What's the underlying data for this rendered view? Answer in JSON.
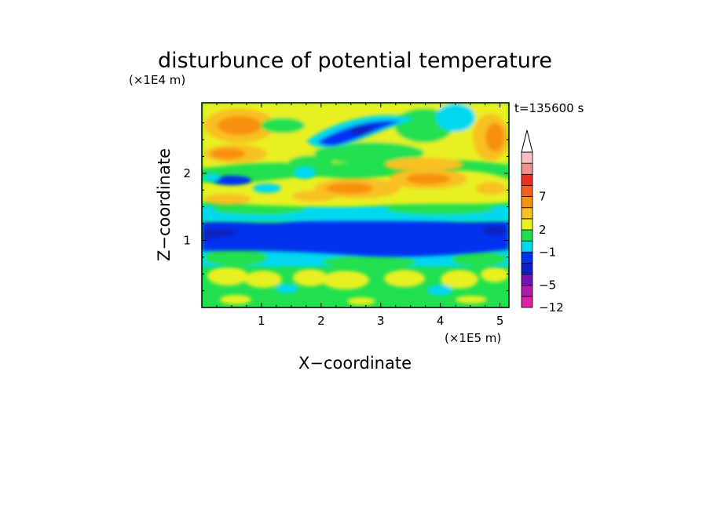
{
  "chart_data": {
    "type": "heatmap",
    "title": "disturbunce of potential temperature",
    "xlabel": "X−coordinate",
    "ylabel": "Z−coordinate",
    "x_unit": "(×1E5 m)",
    "y_unit": "(×1E4 m)",
    "time_label": "t=135600 s",
    "xlim": [
      0,
      5.15
    ],
    "ylim": [
      0,
      3.05
    ],
    "x_ticks": [
      1,
      2,
      3,
      4,
      5
    ],
    "x_tick_labels": [
      "1",
      "2",
      "3",
      "4",
      "5"
    ],
    "y_ticks": [
      1,
      2
    ],
    "y_tick_labels": [
      "1",
      "2"
    ],
    "colorbar": {
      "extend": "max",
      "colors": [
        "#e020a8",
        "#b018b0",
        "#7810b8",
        "#1020c0",
        "#0030f0",
        "#00d8f0",
        "#20e050",
        "#e8f020",
        "#f8c020",
        "#f89010",
        "#f06020",
        "#e83020",
        "#f09090",
        "#f8c0c0"
      ],
      "tick_values": [
        -12,
        -5,
        -1,
        2,
        7
      ],
      "tick_labels": [
        "−12",
        "−5",
        "−1",
        "2",
        "7"
      ]
    },
    "bands": [
      {
        "z_range": [
          0.0,
          0.12
        ],
        "dominant_value": 0,
        "description": "mixed green/yellow near surface"
      },
      {
        "z_range": [
          0.12,
          0.55
        ],
        "dominant_value": 1,
        "description": "yellow-green cells"
      },
      {
        "z_range": [
          0.55,
          0.9
        ],
        "dominant_value": -1,
        "description": "cyan/green layer"
      },
      {
        "z_range": [
          0.9,
          1.25
        ],
        "dominant_value": -4,
        "description": "strong blue negative layer"
      },
      {
        "z_range": [
          1.25,
          1.45
        ],
        "dominant_value": -1,
        "description": "cyan transition"
      },
      {
        "z_range": [
          1.45,
          2.1
        ],
        "dominant_value": 2,
        "description": "yellow/orange wavy layer"
      },
      {
        "z_range": [
          2.1,
          2.5
        ],
        "dominant_value": 1,
        "description": "green/yellow with blue lens near x=2.6"
      },
      {
        "z_range": [
          2.5,
          3.05
        ],
        "dominant_value": 3,
        "description": "orange patches aloft, blue core near x=2.5"
      }
    ]
  }
}
